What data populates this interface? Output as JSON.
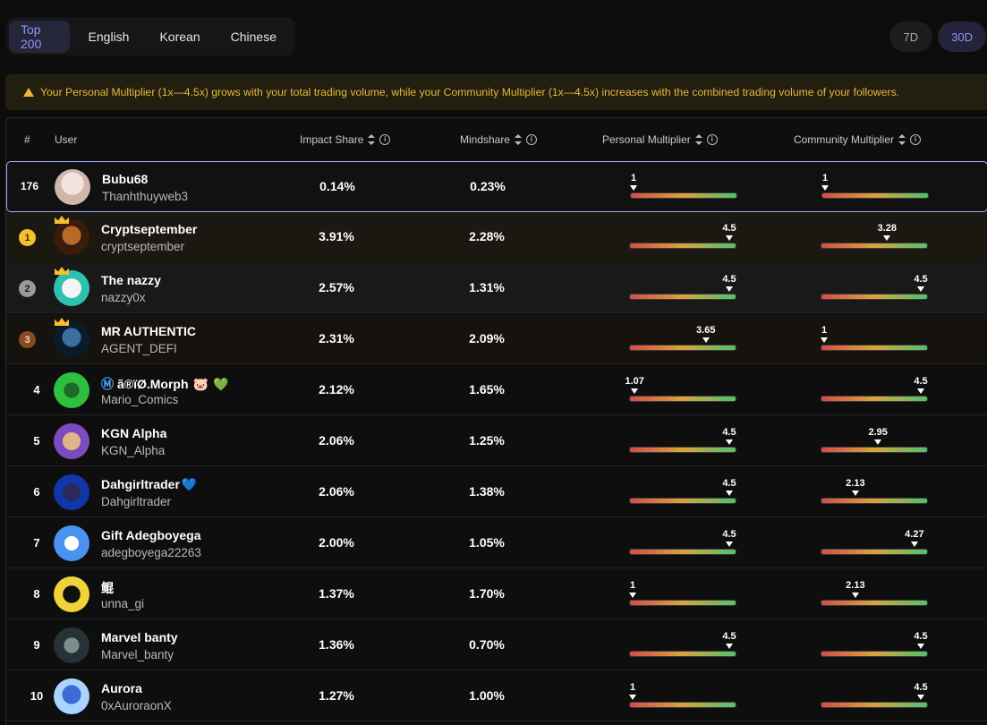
{
  "tabs": [
    {
      "label": "Top 200",
      "active": true
    },
    {
      "label": "English",
      "active": false
    },
    {
      "label": "Korean",
      "active": false
    },
    {
      "label": "Chinese",
      "active": false
    }
  ],
  "periods": [
    {
      "label": "7D",
      "active": false
    },
    {
      "label": "30D",
      "active": true
    }
  ],
  "banner": {
    "icon": "warning-icon",
    "text": "Your Personal Multiplier (1x—4.5x) grows with your total trading volume, while your Community Multiplier (1x—4.5x) increases with the combined trading volume of your followers."
  },
  "columns": {
    "rank": "#",
    "user": "User",
    "impact": "Impact Share",
    "mindshare": "Mindshare",
    "personal": "Personal Multiplier",
    "community": "Community Multiplier"
  },
  "multiplier_range": [
    1,
    4.5
  ],
  "rows": [
    {
      "rank": "176",
      "name": "Bubu68",
      "handle": "Thanhthuyweb3",
      "impact": "0.14%",
      "mindshare": "0.23%",
      "personal": "1",
      "community": "1",
      "highlight": "me"
    },
    {
      "rank": "1",
      "name": "Cryptseptember",
      "handle": "cryptseptember",
      "impact": "3.91%",
      "mindshare": "2.28%",
      "personal": "4.5",
      "community": "3.28",
      "medal": "gold"
    },
    {
      "rank": "2",
      "name": "The nazzy",
      "handle": "nazzy0x",
      "impact": "2.57%",
      "mindshare": "1.31%",
      "personal": "4.5",
      "community": "4.5",
      "medal": "silver"
    },
    {
      "rank": "3",
      "name": "MR AUTHENTIC",
      "handle": "AGENT_DEFI",
      "impact": "2.31%",
      "mindshare": "2.09%",
      "personal": "3.65",
      "community": "1",
      "medal": "bronze"
    },
    {
      "rank": "4",
      "name": "ã®ïØ.Morph",
      "handle": "Mario_Comics",
      "impact": "2.12%",
      "mindshare": "1.65%",
      "personal": "1.07",
      "community": "4.5",
      "badges": [
        "m-badge-icon",
        "pig-icon",
        "green-heart-icon"
      ]
    },
    {
      "rank": "5",
      "name": "KGN Alpha",
      "handle": "KGN_Alpha",
      "impact": "2.06%",
      "mindshare": "1.25%",
      "personal": "4.5",
      "community": "2.95"
    },
    {
      "rank": "6",
      "name": "Dahgirltrader",
      "handle": "Dahgirltrader",
      "impact": "2.06%",
      "mindshare": "1.38%",
      "personal": "4.5",
      "community": "2.13",
      "badges": [
        "blue-heart-icon"
      ]
    },
    {
      "rank": "7",
      "name": "Gift Adegboyega",
      "handle": "adegboyega22263",
      "impact": "2.00%",
      "mindshare": "1.05%",
      "personal": "4.5",
      "community": "4.27"
    },
    {
      "rank": "8",
      "name": "鲲",
      "handle": "unna_gi",
      "impact": "1.37%",
      "mindshare": "1.70%",
      "personal": "1",
      "community": "2.13"
    },
    {
      "rank": "9",
      "name": "Marvel banty",
      "handle": "Marvel_banty",
      "impact": "1.36%",
      "mindshare": "0.70%",
      "personal": "4.5",
      "community": "4.5"
    },
    {
      "rank": "10",
      "name": "Aurora",
      "handle": "0xAuroraonX",
      "impact": "1.27%",
      "mindshare": "1.00%",
      "personal": "1",
      "community": "4.5"
    }
  ],
  "colors": {
    "accent": "#8f96ff",
    "gold": "#f5c02b",
    "silver": "#9a9a9a",
    "bronze": "#8a4a22",
    "warning": "#e7b93b"
  }
}
